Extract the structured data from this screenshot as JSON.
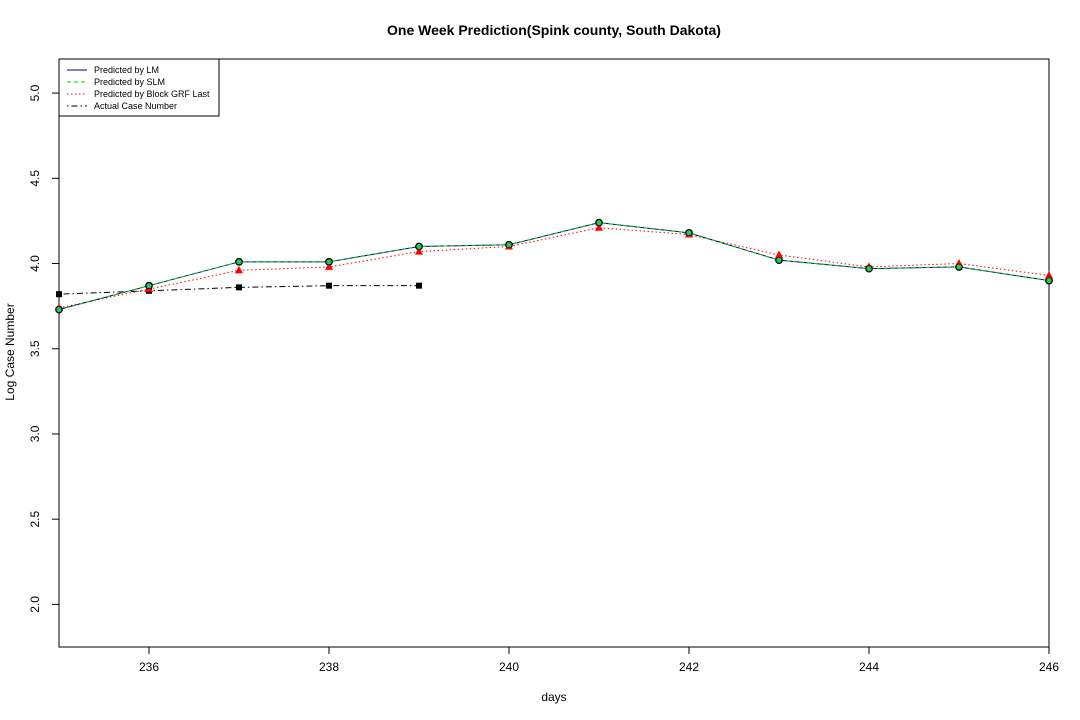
{
  "chart_data": {
    "type": "line",
    "title": "One Week Prediction(Spink county, South Dakota)",
    "xlabel": "days",
    "ylabel": "Log Case Number",
    "xlim": [
      235,
      246
    ],
    "ylim": [
      1.75,
      5.2
    ],
    "xticks": [
      236,
      238,
      240,
      242,
      244,
      246
    ],
    "yticks": [
      2.0,
      2.5,
      3.0,
      3.5,
      4.0,
      4.5,
      5.0
    ],
    "xtick_labels": [
      "236",
      "238",
      "240",
      "242",
      "244",
      "246"
    ],
    "ytick_labels": [
      "2.0",
      "2.5",
      "3.0",
      "3.5",
      "4.0",
      "4.5",
      "5.0"
    ],
    "legend_position": "top-left",
    "grid": false,
    "series": [
      {
        "name": "Predicted by LM",
        "color": "#00008b",
        "line_style": "solid",
        "marker": "circle-blue",
        "x": [
          235,
          236,
          237,
          238,
          239,
          240,
          241,
          242,
          243,
          244,
          245,
          246
        ],
        "values": [
          3.73,
          3.87,
          4.01,
          4.01,
          4.1,
          4.11,
          4.24,
          4.18,
          4.02,
          3.97,
          3.98,
          3.9
        ]
      },
      {
        "name": "Predicted by SLM",
        "color": "#00cd00",
        "line_style": "dashed",
        "marker": "circle-green",
        "x": [
          235,
          236,
          237,
          238,
          239,
          240,
          241,
          242,
          243,
          244,
          245,
          246
        ],
        "values": [
          3.73,
          3.87,
          4.01,
          4.01,
          4.1,
          4.11,
          4.24,
          4.18,
          4.02,
          3.97,
          3.98,
          3.9
        ]
      },
      {
        "name": "Predicted by Block GRF Last",
        "color": "#ff0000",
        "line_style": "dotted",
        "marker": "triangle-red",
        "x": [
          235,
          236,
          237,
          238,
          239,
          240,
          241,
          242,
          243,
          244,
          245,
          246
        ],
        "values": [
          3.74,
          3.85,
          3.96,
          3.98,
          4.07,
          4.1,
          4.21,
          4.17,
          4.05,
          3.98,
          4.0,
          3.93
        ]
      },
      {
        "name": "Actual Case Number",
        "color": "#000000",
        "line_style": "dotdash",
        "marker": "square-black",
        "x": [
          235,
          236,
          237,
          238,
          239
        ],
        "values": [
          3.82,
          3.84,
          3.86,
          3.87,
          3.87
        ]
      }
    ]
  }
}
